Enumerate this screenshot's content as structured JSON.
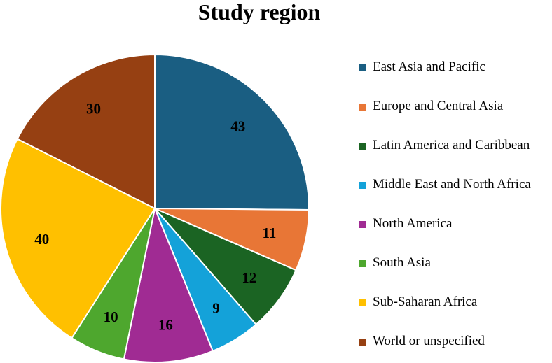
{
  "chart_data": {
    "type": "pie",
    "title": "Study region",
    "legend_position": "right",
    "slices": [
      {
        "label": "East Asia and Pacific",
        "value": 43,
        "value_label": "43",
        "color": "#1a5e82"
      },
      {
        "label": "Europe and Central Asia",
        "value": 11,
        "value_label": "11",
        "color": "#e87636"
      },
      {
        "label": "Latin America and Caribbean",
        "value": 12,
        "value_label": "12",
        "color": "#1b6423"
      },
      {
        "label": "Middle East and North Africa",
        "value": 9,
        "value_label": "9",
        "color": "#14a2d9"
      },
      {
        "label": "North America",
        "value": 16,
        "value_label": "16",
        "color": "#a02b93"
      },
      {
        "label": "South Asia",
        "value": 10,
        "value_label": "10",
        "color": "#4ea72e"
      },
      {
        "label": "Sub-Saharan Africa",
        "value": 40,
        "value_label": "40",
        "color": "#ffc000"
      },
      {
        "label": "World or unspecified",
        "value": 30,
        "value_label": "30",
        "color": "#964012"
      }
    ]
  }
}
